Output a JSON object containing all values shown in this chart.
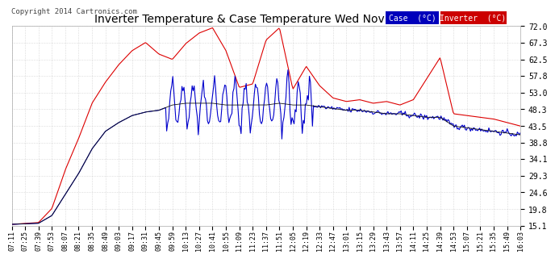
{
  "title": "Inverter Temperature & Case Temperature Wed Nov 19 16:10",
  "copyright": "Copyright 2014 Cartronics.com",
  "bg_color": "#ffffff",
  "plot_bg_color": "#ffffff",
  "grid_color": "#bbbbbb",
  "ylim": [
    15.1,
    72.0
  ],
  "yticks": [
    15.1,
    19.8,
    24.6,
    29.3,
    34.1,
    38.8,
    43.5,
    48.3,
    53.0,
    57.8,
    62.5,
    67.3,
    72.0
  ],
  "xtick_labels": [
    "07:11",
    "07:25",
    "07:39",
    "07:53",
    "08:07",
    "08:21",
    "08:35",
    "08:49",
    "09:03",
    "09:17",
    "09:31",
    "09:45",
    "09:59",
    "10:13",
    "10:27",
    "10:41",
    "10:55",
    "11:09",
    "11:23",
    "11:37",
    "11:51",
    "12:05",
    "12:19",
    "12:33",
    "12:47",
    "13:01",
    "13:15",
    "13:29",
    "13:43",
    "13:57",
    "14:11",
    "14:25",
    "14:39",
    "14:53",
    "15:07",
    "15:21",
    "15:35",
    "15:49",
    "16:03"
  ],
  "legend": {
    "case_label": "Case  (°C)",
    "inverter_label": "Inverter  (°C)",
    "case_bg": "#0000bb",
    "inverter_bg": "#cc0000",
    "text_color": "#ffffff"
  },
  "inverter_color": "#dd0000",
  "case_color": "#0000cc",
  "black_color": "#111111",
  "line_width": 0.8
}
